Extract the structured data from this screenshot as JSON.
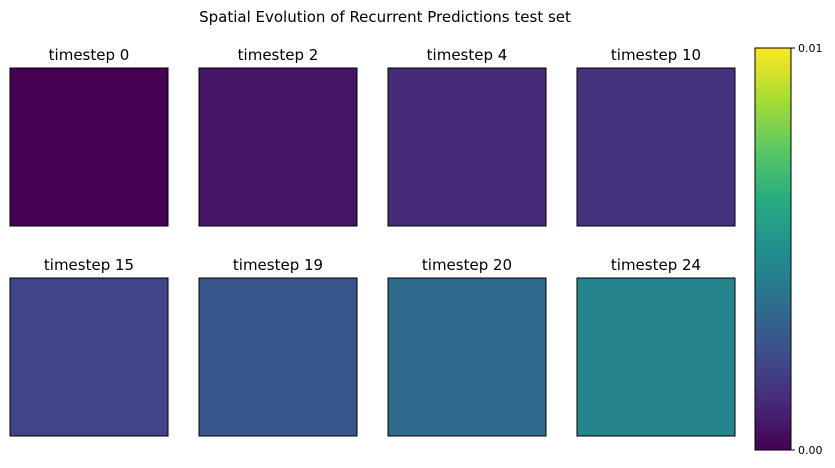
{
  "chart_data": {
    "type": "heatmap",
    "title": "Spatial Evolution of Recurrent Predictions test set",
    "panels": [
      {
        "label": "timestep 0",
        "value": 0.0
      },
      {
        "label": "timestep 2",
        "value": 0.0006
      },
      {
        "label": "timestep 4",
        "value": 0.0012
      },
      {
        "label": "timestep 10",
        "value": 0.0015
      },
      {
        "label": "timestep 15",
        "value": 0.0021
      },
      {
        "label": "timestep 19",
        "value": 0.0027
      },
      {
        "label": "timestep 20",
        "value": 0.0035
      },
      {
        "label": "timestep 24",
        "value": 0.0045
      }
    ],
    "colorbar": {
      "colormap": "viridis",
      "vmin": 0.0,
      "vmax": 0.01,
      "tick_labels": [
        "0.00",
        "0.01"
      ],
      "tick_values": [
        0.0,
        0.01
      ]
    },
    "colors": {
      "frame": "#000000",
      "background": "#ffffff"
    }
  }
}
